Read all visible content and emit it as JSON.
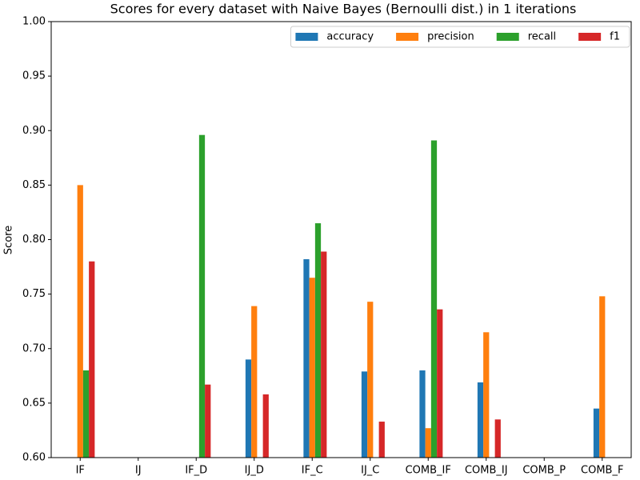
{
  "chart_data": {
    "type": "bar",
    "title": "Scores for every dataset with Naive Bayes (Bernoulli dist.) in 1 iterations",
    "y_label": "Score",
    "categories": [
      "IF",
      "IJ",
      "IF_D",
      "IJ_D",
      "IF_C",
      "IJ_C",
      "COMB_IF",
      "COMB_IJ",
      "COMB_P",
      "COMB_F"
    ],
    "series": [
      {
        "name": "accuracy",
        "color": "#1f77b4",
        "values": [
          null,
          null,
          null,
          0.69,
          0.782,
          0.679,
          0.68,
          0.669,
          null,
          0.645
        ]
      },
      {
        "name": "precision",
        "color": "#ff7f0e",
        "values": [
          0.85,
          null,
          null,
          0.739,
          0.765,
          0.743,
          0.627,
          0.715,
          null,
          0.748
        ]
      },
      {
        "name": "recall",
        "color": "#2ca02c",
        "values": [
          0.68,
          null,
          0.896,
          null,
          0.815,
          null,
          0.891,
          null,
          null,
          null
        ]
      },
      {
        "name": "f1",
        "color": "#d62728",
        "values": [
          0.78,
          null,
          0.667,
          0.658,
          0.789,
          0.633,
          0.736,
          0.635,
          null,
          null
        ]
      }
    ],
    "ylim": [
      0.6,
      1.0
    ],
    "yticks": [
      {
        "value": 0.6,
        "label": "0.60"
      },
      {
        "value": 0.65,
        "label": "0.65"
      },
      {
        "value": 0.7,
        "label": "0.70"
      },
      {
        "value": 0.75,
        "label": "0.75"
      },
      {
        "value": 0.8,
        "label": "0.80"
      },
      {
        "value": 0.85,
        "label": "0.85"
      },
      {
        "value": 0.9,
        "label": "0.90"
      },
      {
        "value": 0.95,
        "label": "0.95"
      },
      {
        "value": 1.0,
        "label": "1.00"
      }
    ],
    "legend": "upper right",
    "grid": false
  }
}
